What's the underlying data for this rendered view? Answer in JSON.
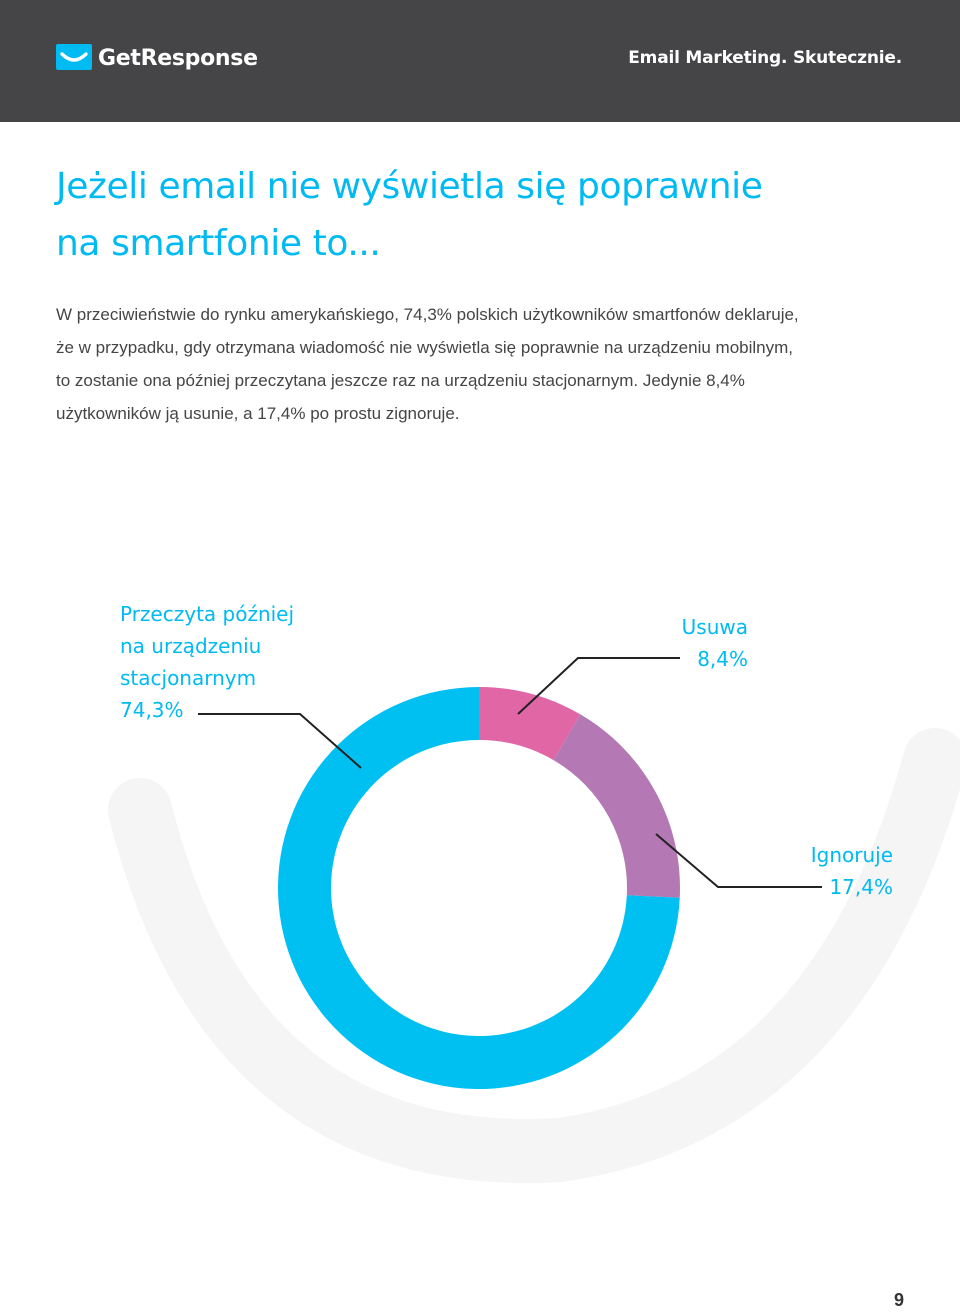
{
  "header": {
    "logo_text": "GetResponse",
    "tagline": "Email Marketing. Skutecznie."
  },
  "title": {
    "line1": "Jeżeli email nie wyświetla się poprawnie",
    "line2": "na smartfonie to..."
  },
  "intro": {
    "line1": "W przeciwieństwie do rynku amerykańskiego, 74,3% polskich użytkowników smartfonów deklaruje,",
    "line2": "że w przypadku, gdy otrzymana wiadomość nie wyświetla się poprawnie na urządzeniu mobilnym,",
    "line3": "to zostanie ona później przeczytana jeszcze raz na urządzeniu stacjonarnym. Jedynie 8,4%",
    "line4": "użytkowników ją usunie, a 17,4% po prostu zignoruje."
  },
  "chart_data": {
    "type": "pie",
    "donut": true,
    "slices": [
      {
        "label_lines": [
          "Usuwa"
        ],
        "value": 8.4,
        "value_label": "8,4%",
        "color": "#e066a6"
      },
      {
        "label_lines": [
          "Ignoruje"
        ],
        "value": 17.4,
        "value_label": "17,4%",
        "color": "#b479b4"
      },
      {
        "label_lines": [
          "Przeczyta później",
          "na urządzeniu",
          "stacjonarnym"
        ],
        "value": 74.3,
        "value_label": "74,3%",
        "color": "#00c0f2"
      }
    ],
    "start": "top",
    "direction": "clockwise",
    "label_color": "#00baf2",
    "leader_color": "#222222"
  },
  "decor": {
    "background_arc_color": "#f5f5f5",
    "header_color": "#454547",
    "accent_color": "#00baf2"
  },
  "page_number": "9"
}
